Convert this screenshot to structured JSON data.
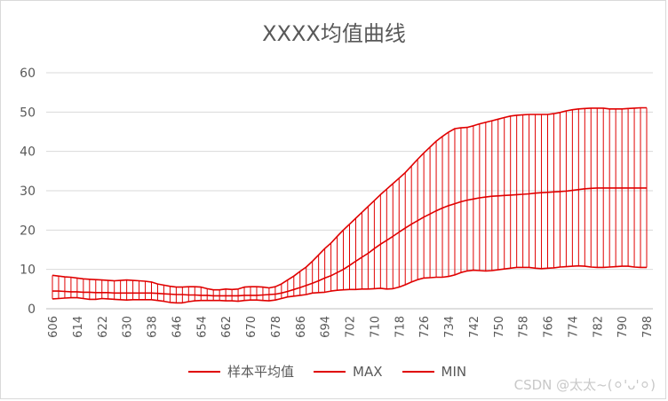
{
  "chart_data": {
    "type": "line",
    "title": "XXXX均值曲线",
    "xlabel": "",
    "ylabel": "",
    "ylim": [
      0,
      60
    ],
    "yticks": [
      0,
      10,
      20,
      30,
      40,
      50,
      60
    ],
    "x": [
      606,
      608,
      610,
      612,
      614,
      616,
      618,
      620,
      622,
      624,
      626,
      628,
      630,
      632,
      634,
      636,
      638,
      640,
      642,
      644,
      646,
      648,
      650,
      652,
      654,
      656,
      658,
      660,
      662,
      664,
      666,
      668,
      670,
      672,
      674,
      676,
      678,
      680,
      682,
      684,
      686,
      688,
      690,
      692,
      694,
      696,
      698,
      700,
      702,
      704,
      706,
      708,
      710,
      712,
      714,
      716,
      718,
      720,
      722,
      724,
      726,
      728,
      730,
      732,
      734,
      736,
      738,
      740,
      742,
      744,
      746,
      748,
      750,
      752,
      754,
      756,
      758,
      760,
      762,
      764,
      766,
      768,
      770,
      772,
      774,
      776,
      778,
      780,
      782,
      784,
      786,
      788,
      790,
      792,
      794,
      796,
      798
    ],
    "x_tick_labels": [
      "606",
      "614",
      "622",
      "630",
      "638",
      "646",
      "654",
      "662",
      "670",
      "678",
      "686",
      "694",
      "702",
      "710",
      "718",
      "726",
      "734",
      "742",
      "750",
      "758",
      "766",
      "774",
      "782",
      "790",
      "798"
    ],
    "grid": true,
    "legend_position": "bottom",
    "series": [
      {
        "name": "样本平均值",
        "color": "#e00000",
        "values": [
          4.5,
          4.5,
          4.4,
          4.3,
          4.3,
          4.2,
          4.2,
          4.1,
          4.1,
          4.1,
          4.0,
          4.0,
          4.0,
          4.0,
          4.0,
          4.0,
          4.0,
          3.9,
          3.8,
          3.7,
          3.6,
          3.6,
          3.5,
          3.5,
          3.4,
          3.4,
          3.3,
          3.3,
          3.3,
          3.3,
          3.3,
          3.4,
          3.4,
          3.4,
          3.5,
          3.6,
          3.7,
          4.0,
          4.4,
          4.9,
          5.4,
          5.9,
          6.5,
          7.1,
          7.8,
          8.4,
          9.2,
          10.0,
          11.0,
          12.1,
          13.1,
          14.1,
          15.3,
          16.4,
          17.4,
          18.4,
          19.5,
          20.5,
          21.5,
          22.4,
          23.3,
          24.1,
          24.9,
          25.6,
          26.2,
          26.7,
          27.2,
          27.6,
          27.9,
          28.2,
          28.4,
          28.6,
          28.7,
          28.8,
          28.9,
          29.0,
          29.1,
          29.2,
          29.4,
          29.5,
          29.6,
          29.7,
          29.8,
          29.9,
          30.1,
          30.3,
          30.5,
          30.6,
          30.7,
          30.7,
          30.7,
          30.7,
          30.7,
          30.7,
          30.7,
          30.7,
          30.7
        ]
      },
      {
        "name": "MAX",
        "color": "#e00000",
        "values": [
          8.5,
          8.3,
          8.1,
          8.0,
          7.8,
          7.6,
          7.5,
          7.4,
          7.3,
          7.2,
          7.1,
          7.2,
          7.3,
          7.2,
          7.1,
          7.0,
          6.8,
          6.3,
          6.0,
          5.7,
          5.5,
          5.5,
          5.6,
          5.6,
          5.5,
          5.1,
          4.8,
          4.8,
          5.0,
          4.9,
          5.0,
          5.5,
          5.6,
          5.6,
          5.5,
          5.3,
          5.6,
          6.3,
          7.3,
          8.3,
          9.5,
          10.6,
          12.1,
          13.7,
          15.3,
          16.7,
          18.4,
          20.0,
          21.5,
          23.0,
          24.5,
          26.0,
          27.5,
          29.0,
          30.4,
          31.8,
          33.2,
          34.6,
          36.3,
          38.0,
          39.6,
          41.1,
          42.6,
          43.8,
          44.9,
          45.8,
          46.0,
          46.1,
          46.5,
          47.0,
          47.4,
          47.8,
          48.2,
          48.6,
          49.0,
          49.2,
          49.3,
          49.4,
          49.4,
          49.4,
          49.4,
          49.6,
          49.9,
          50.3,
          50.6,
          50.8,
          50.9,
          51.0,
          51.0,
          51.0,
          50.8,
          50.8,
          50.8,
          50.9,
          51.0,
          51.1,
          51.1
        ]
      },
      {
        "name": "MIN",
        "color": "#e00000",
        "values": [
          2.5,
          2.6,
          2.7,
          2.8,
          2.8,
          2.6,
          2.4,
          2.4,
          2.6,
          2.5,
          2.4,
          2.3,
          2.2,
          2.3,
          2.3,
          2.3,
          2.3,
          2.1,
          1.9,
          1.6,
          1.5,
          1.5,
          1.8,
          2.0,
          2.1,
          2.1,
          2.1,
          2.1,
          2.0,
          2.0,
          1.9,
          2.1,
          2.2,
          2.2,
          2.1,
          2.0,
          2.2,
          2.6,
          3.0,
          3.2,
          3.4,
          3.6,
          4.0,
          4.1,
          4.2,
          4.5,
          4.7,
          4.8,
          4.9,
          4.9,
          5.0,
          5.0,
          5.1,
          5.2,
          5.0,
          5.1,
          5.5,
          6.1,
          6.8,
          7.4,
          7.8,
          7.9,
          8.0,
          8.0,
          8.2,
          8.6,
          9.2,
          9.6,
          9.8,
          9.7,
          9.6,
          9.7,
          9.9,
          10.1,
          10.3,
          10.5,
          10.5,
          10.5,
          10.3,
          10.2,
          10.3,
          10.4,
          10.6,
          10.7,
          10.8,
          10.9,
          10.8,
          10.6,
          10.5,
          10.5,
          10.6,
          10.7,
          10.8,
          10.8,
          10.6,
          10.5,
          10.5
        ]
      }
    ]
  },
  "watermark": "CSDN @太太~(⚪'ᴗ'⚪)"
}
